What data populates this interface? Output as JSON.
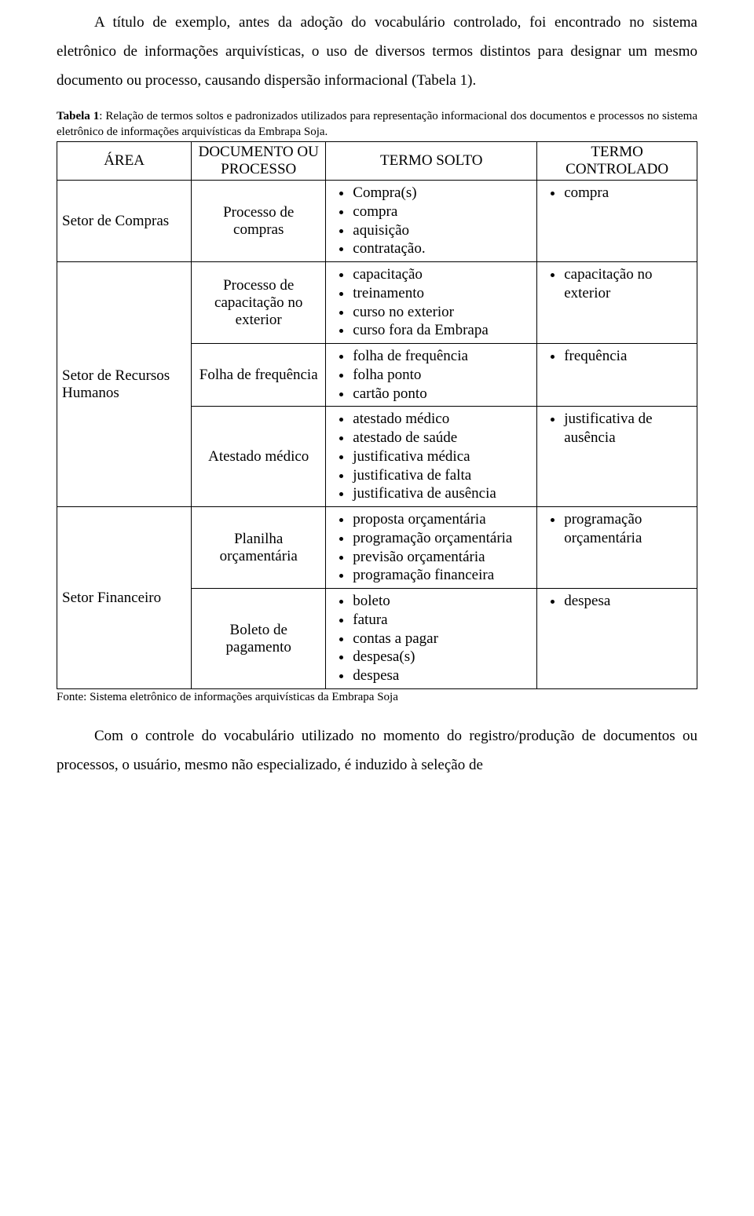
{
  "paragraphs": {
    "intro": "A título de exemplo, antes da adoção do vocabulário controlado, foi encontrado no sistema eletrônico de informações arquivísticas, o uso de diversos termos distintos para designar um mesmo documento ou processo, causando dispersão informacional (Tabela 1).",
    "outro": "Com o controle do vocabulário utilizado no momento do registro/produção de documentos ou processos, o usuário, mesmo não especializado, é induzido à seleção de"
  },
  "caption_label": "Tabela 1",
  "caption_text": ": Relação de termos soltos e padronizados utilizados para representação informacional dos documentos e processos no sistema eletrônico de informações arquivísticas da Embrapa Soja.",
  "headers": {
    "area": "ÁREA",
    "doc": "DOCUMENTO OU PROCESSO",
    "solto": "TERMO SOLTO",
    "controlado": "TERMO CONTROLADO"
  },
  "rows": [
    {
      "area": "Setor de Compras",
      "area_rowspan": 1,
      "doc": "Processo de compras",
      "solto": [
        "Compra(s)",
        "compra",
        "aquisição",
        "contratação."
      ],
      "controlado": [
        "compra"
      ]
    },
    {
      "area": "Setor de Recursos Humanos",
      "area_rowspan": 3,
      "doc": "Processo de capacitação no exterior",
      "solto": [
        "capacitação",
        "treinamento",
        "curso no exterior",
        "curso fora da Embrapa"
      ],
      "controlado": [
        "capacitação no exterior"
      ]
    },
    {
      "doc": "Folha de frequência",
      "solto": [
        "folha de frequência",
        "folha ponto",
        "cartão ponto"
      ],
      "controlado": [
        "frequência"
      ]
    },
    {
      "doc": "Atestado médico",
      "solto": [
        "atestado médico",
        "atestado de saúde",
        "justificativa médica",
        "justificativa de falta",
        "justificativa de ausência"
      ],
      "controlado": [
        "justificativa de ausência"
      ]
    },
    {
      "area": "Setor Financeiro",
      "area_rowspan": 2,
      "doc": "Planilha orçamentária",
      "solto": [
        "proposta orçamentária",
        "programação orçamentária",
        "previsão orçamentária",
        "programação financeira"
      ],
      "controlado": [
        "programação orçamentária"
      ]
    },
    {
      "doc": "Boleto de pagamento",
      "solto": [
        "boleto",
        "fatura",
        "contas a pagar",
        "despesa(s)",
        "despesa"
      ],
      "controlado": [
        "despesa"
      ]
    }
  ],
  "source": "Fonte: Sistema eletrônico de informações arquivísticas da Embrapa Soja"
}
